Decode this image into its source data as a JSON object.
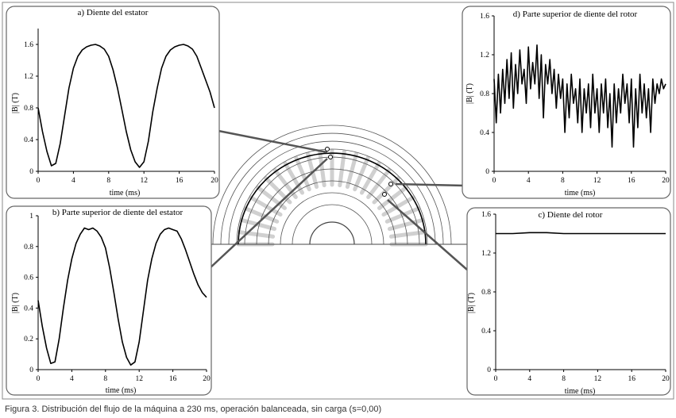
{
  "caption": "Figura 3. Distribución del flujo de la máquina a 230 ms, operación balanceada, sin carga (s=0,00)",
  "colors": {
    "line": "#000000",
    "frame": "#666666",
    "motor": "#555555"
  },
  "chart_data": [
    {
      "id": "a",
      "type": "line",
      "title": "a) Diente del estator",
      "xlabel": "time (ms)",
      "ylabel": "|B| (T)",
      "xlim": [
        0,
        20
      ],
      "ylim": [
        0,
        1.8
      ],
      "xticks": [
        "0",
        "4",
        "8",
        "12",
        "16",
        "20"
      ],
      "yticks": [
        "0",
        "0.4",
        "0.8",
        "1.2",
        "1.6"
      ],
      "series": [
        {
          "x": [
            0,
            0.5,
            1,
            1.5,
            2,
            2.5,
            3,
            3.5,
            4,
            4.5,
            5,
            5.5,
            6,
            6.5,
            7,
            7.5,
            8,
            8.5,
            9,
            9.5,
            10,
            10.5,
            11,
            11.5,
            12,
            12.5,
            13,
            13.5,
            14,
            14.5,
            15,
            15.5,
            16,
            16.5,
            17,
            17.5,
            18,
            18.5,
            19,
            19.5,
            20
          ],
          "y": [
            0.8,
            0.5,
            0.25,
            0.07,
            0.1,
            0.35,
            0.7,
            1.05,
            1.3,
            1.45,
            1.53,
            1.57,
            1.59,
            1.6,
            1.58,
            1.54,
            1.45,
            1.28,
            1.05,
            0.78,
            0.5,
            0.27,
            0.12,
            0.05,
            0.12,
            0.38,
            0.75,
            1.05,
            1.3,
            1.45,
            1.53,
            1.57,
            1.59,
            1.6,
            1.58,
            1.54,
            1.45,
            1.3,
            1.15,
            1.0,
            0.8
          ]
        }
      ]
    },
    {
      "id": "b",
      "type": "line",
      "title": "b) Parte superior de diente del estator",
      "xlabel": "time (ms)",
      "ylabel": "|B| (T)",
      "xlim": [
        0,
        20
      ],
      "ylim": [
        0,
        1
      ],
      "xticks": [
        "0",
        "4",
        "8",
        "12",
        "16",
        "20"
      ],
      "yticks": [
        "0",
        "0.2",
        "0.4",
        "0.6",
        "0.8",
        "1"
      ],
      "series": [
        {
          "x": [
            0,
            0.5,
            1,
            1.5,
            2,
            2.5,
            3,
            3.5,
            4,
            4.5,
            5,
            5.5,
            6,
            6.5,
            7,
            7.5,
            8,
            8.5,
            9,
            9.5,
            10,
            10.5,
            11,
            11.5,
            12,
            12.5,
            13,
            13.5,
            14,
            14.5,
            15,
            15.5,
            16,
            16.5,
            17,
            17.5,
            18,
            18.5,
            19,
            19.5,
            20
          ],
          "y": [
            0.45,
            0.28,
            0.14,
            0.04,
            0.05,
            0.2,
            0.4,
            0.58,
            0.72,
            0.82,
            0.88,
            0.92,
            0.91,
            0.92,
            0.9,
            0.86,
            0.79,
            0.66,
            0.5,
            0.33,
            0.18,
            0.08,
            0.03,
            0.05,
            0.18,
            0.38,
            0.58,
            0.72,
            0.82,
            0.88,
            0.91,
            0.92,
            0.91,
            0.9,
            0.85,
            0.78,
            0.7,
            0.62,
            0.55,
            0.5,
            0.47
          ]
        }
      ]
    },
    {
      "id": "d",
      "type": "line",
      "title": "d) Parte superior de diente del rotor",
      "xlabel": "time (ms)",
      "ylabel": "|B| (T)",
      "xlim": [
        0,
        20
      ],
      "ylim": [
        0,
        1.6
      ],
      "xticks": [
        "0",
        "4",
        "8",
        "12",
        "16",
        "20"
      ],
      "yticks": [
        "0",
        "0.4",
        "0.8",
        "1.2",
        "1.6"
      ],
      "series": [
        {
          "x": [
            0,
            0.25,
            0.5,
            0.75,
            1,
            1.25,
            1.5,
            1.75,
            2,
            2.25,
            2.5,
            2.75,
            3,
            3.25,
            3.5,
            3.75,
            4,
            4.25,
            4.5,
            4.75,
            5,
            5.25,
            5.5,
            5.75,
            6,
            6.25,
            6.5,
            6.75,
            7,
            7.25,
            7.5,
            7.75,
            8,
            8.25,
            8.5,
            8.75,
            9,
            9.25,
            9.5,
            9.75,
            10,
            10.25,
            10.5,
            10.75,
            11,
            11.25,
            11.5,
            11.75,
            12,
            12.25,
            12.5,
            12.75,
            13,
            13.25,
            13.5,
            13.75,
            14,
            14.25,
            14.5,
            14.75,
            15,
            15.25,
            15.5,
            15.75,
            16,
            16.25,
            16.5,
            16.75,
            17,
            17.25,
            17.5,
            17.75,
            18,
            18.25,
            18.5,
            18.75,
            19,
            19.25,
            19.5,
            19.75,
            20
          ],
          "y": [
            0.95,
            0.5,
            1.0,
            0.6,
            1.05,
            0.7,
            1.15,
            0.75,
            1.22,
            0.65,
            1.1,
            0.8,
            1.25,
            0.9,
            1.05,
            0.7,
            1.28,
            0.85,
            1.12,
            0.9,
            1.3,
            0.75,
            1.2,
            0.55,
            1.1,
            0.9,
            1.15,
            0.8,
            1.05,
            0.65,
            1.0,
            0.75,
            0.95,
            0.4,
            0.9,
            0.55,
            1.0,
            0.7,
            0.85,
            0.5,
            0.95,
            0.4,
            0.85,
            0.6,
            0.9,
            0.45,
            1.0,
            0.6,
            0.85,
            0.4,
            0.9,
            0.6,
            0.95,
            0.45,
            0.8,
            0.25,
            0.9,
            0.5,
            0.85,
            0.6,
            1.0,
            0.7,
            0.9,
            0.5,
            0.95,
            0.25,
            0.85,
            0.45,
            1.0,
            0.6,
            0.9,
            0.55,
            0.85,
            0.4,
            0.95,
            0.7,
            0.9,
            0.8,
            0.95,
            0.85,
            0.9
          ]
        }
      ]
    },
    {
      "id": "c",
      "type": "line",
      "title": "c) Diente del rotor",
      "xlabel": "time (ms)",
      "ylabel": "|B| (T)",
      "xlim": [
        0,
        20
      ],
      "ylim": [
        0,
        1.6
      ],
      "xticks": [
        "0",
        "4",
        "8",
        "12",
        "16",
        "20"
      ],
      "yticks": [
        "0",
        "0.4",
        "0.8",
        "1.2",
        "1.6"
      ],
      "series": [
        {
          "x": [
            0,
            2,
            4,
            6,
            8,
            10,
            12,
            14,
            16,
            18,
            20
          ],
          "y": [
            1.4,
            1.4,
            1.41,
            1.41,
            1.4,
            1.4,
            1.4,
            1.4,
            1.4,
            1.4,
            1.4
          ]
        }
      ]
    }
  ]
}
